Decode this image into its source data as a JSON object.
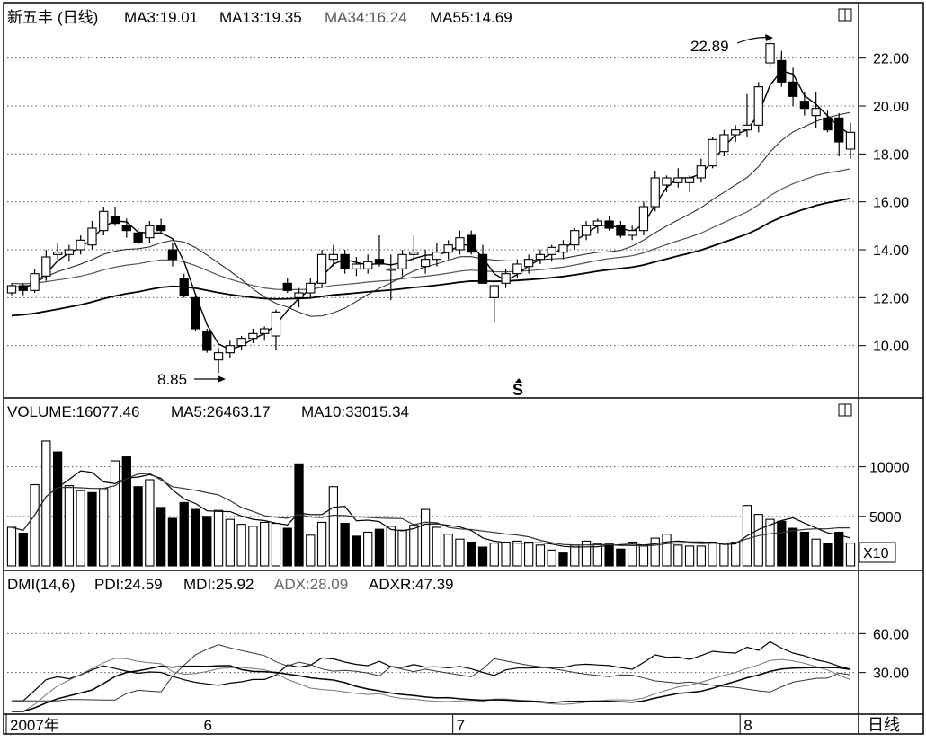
{
  "header": {
    "stock_name": "新五丰",
    "period": "(日线)",
    "ma3": "MA3:19.01",
    "ma13": "MA13:19.35",
    "ma34": "MA34:16.24",
    "ma55": "MA55:14.69"
  },
  "volume_header": {
    "volume": "VOLUME:16077.46",
    "ma5": "MA5:26463.17",
    "ma10": "MA10:33015.34"
  },
  "volume_unit": "X10",
  "dmi_header": {
    "dmi": "DMI(14,6)",
    "pdi": "PDI:24.59",
    "mdi": "MDI:25.92",
    "adx": "ADX:28.09",
    "adxr": "ADXR:47.39"
  },
  "annotations": {
    "high": "22.89",
    "low": "8.85",
    "marker": "S"
  },
  "footer": {
    "period_button": "日线"
  },
  "colors": {
    "ink": "#000000",
    "grid": "#555555",
    "ma34": "#555555",
    "adx": "#666666"
  },
  "chart_data": [
    {
      "type": "candlestick",
      "ylim": [
        8,
        23
      ],
      "yticks": [
        "22.00",
        "20.00",
        "18.00",
        "16.00",
        "14.00",
        "12.00",
        "10.00"
      ],
      "x_labels": [
        "2007年",
        "6",
        "7",
        "8"
      ],
      "candles": [
        [
          12.2,
          12.6,
          12.1,
          12.5
        ],
        [
          12.5,
          12.6,
          12.1,
          12.3
        ],
        [
          12.3,
          13.2,
          12.2,
          13.0
        ],
        [
          12.9,
          14.0,
          12.7,
          13.7
        ],
        [
          13.8,
          14.3,
          13.6,
          13.9
        ],
        [
          13.8,
          14.2,
          13.5,
          14.0
        ],
        [
          14.0,
          14.6,
          13.8,
          14.4
        ],
        [
          14.2,
          15.2,
          14.0,
          14.9
        ],
        [
          14.8,
          15.8,
          14.6,
          15.6
        ],
        [
          15.4,
          15.8,
          15.0,
          15.1
        ],
        [
          15.0,
          15.3,
          14.5,
          14.8
        ],
        [
          14.7,
          14.9,
          14.2,
          14.3
        ],
        [
          14.5,
          15.2,
          14.3,
          15.0
        ],
        [
          15.0,
          15.3,
          14.7,
          14.8
        ],
        [
          14.0,
          14.3,
          13.3,
          13.6
        ],
        [
          12.8,
          13.0,
          12.0,
          12.1
        ],
        [
          12.0,
          12.1,
          10.6,
          10.7
        ],
        [
          10.6,
          10.7,
          9.7,
          9.8
        ],
        [
          9.4,
          9.9,
          8.85,
          9.7
        ],
        [
          9.7,
          10.2,
          9.5,
          10.0
        ],
        [
          10.0,
          10.4,
          9.8,
          10.3
        ],
        [
          10.3,
          10.7,
          10.1,
          10.5
        ],
        [
          10.5,
          10.8,
          10.2,
          10.7
        ],
        [
          10.4,
          11.5,
          9.8,
          11.4
        ],
        [
          12.6,
          12.8,
          12.2,
          12.3
        ],
        [
          12.0,
          12.4,
          11.6,
          12.2
        ],
        [
          12.2,
          12.8,
          12.0,
          12.6
        ],
        [
          12.6,
          14.0,
          12.4,
          13.8
        ],
        [
          13.6,
          14.2,
          13.3,
          13.8
        ],
        [
          13.8,
          14.0,
          13.0,
          13.2
        ],
        [
          13.2,
          13.7,
          12.9,
          13.4
        ],
        [
          13.2,
          13.8,
          13.0,
          13.5
        ],
        [
          13.6,
          14.6,
          13.3,
          13.4
        ],
        [
          13.2,
          13.8,
          11.9,
          13.2
        ],
        [
          13.2,
          14.0,
          12.9,
          13.8
        ],
        [
          13.8,
          14.6,
          13.5,
          13.9
        ],
        [
          13.3,
          14.0,
          13.0,
          13.6
        ],
        [
          13.6,
          14.3,
          13.3,
          13.9
        ],
        [
          13.9,
          14.4,
          13.6,
          14.2
        ],
        [
          14.0,
          14.8,
          13.8,
          14.5
        ],
        [
          14.6,
          14.8,
          13.8,
          13.9
        ],
        [
          13.8,
          14.2,
          12.6,
          12.6
        ],
        [
          12.0,
          12.4,
          11.0,
          12.5
        ],
        [
          12.6,
          13.2,
          12.4,
          13.0
        ],
        [
          13.0,
          13.6,
          12.8,
          13.4
        ],
        [
          13.3,
          13.8,
          13.0,
          13.6
        ],
        [
          13.6,
          14.0,
          13.4,
          13.8
        ],
        [
          13.8,
          14.2,
          13.5,
          14.1
        ],
        [
          13.9,
          14.4,
          13.6,
          14.2
        ],
        [
          14.2,
          14.9,
          14.0,
          14.8
        ],
        [
          14.6,
          15.2,
          14.4,
          15.0
        ],
        [
          15.0,
          15.3,
          14.7,
          15.2
        ],
        [
          15.2,
          15.4,
          14.8,
          14.9
        ],
        [
          15.0,
          15.2,
          14.5,
          14.6
        ],
        [
          14.6,
          15.0,
          14.4,
          14.8
        ],
        [
          14.8,
          16.0,
          14.6,
          15.8
        ],
        [
          15.8,
          17.3,
          15.6,
          17.0
        ],
        [
          16.7,
          17.1,
          16.4,
          17.0
        ],
        [
          16.8,
          17.4,
          16.6,
          17.0
        ],
        [
          16.8,
          17.1,
          16.4,
          17.0
        ],
        [
          17.0,
          17.8,
          16.8,
          17.5
        ],
        [
          17.5,
          18.7,
          17.4,
          18.6
        ],
        [
          18.1,
          19.0,
          17.9,
          18.8
        ],
        [
          18.8,
          19.2,
          18.5,
          19.0
        ],
        [
          19.0,
          20.5,
          18.7,
          19.2
        ],
        [
          19.2,
          21.0,
          18.9,
          20.8
        ],
        [
          21.8,
          22.89,
          21.6,
          22.6
        ],
        [
          21.9,
          22.3,
          20.8,
          21.0
        ],
        [
          21.0,
          21.6,
          20.0,
          20.4
        ],
        [
          20.2,
          20.6,
          19.6,
          19.9
        ],
        [
          19.6,
          20.6,
          19.1,
          19.9
        ],
        [
          19.5,
          19.8,
          18.9,
          19.0
        ],
        [
          19.5,
          19.7,
          17.9,
          18.5
        ],
        [
          18.2,
          19.3,
          17.8,
          18.9
        ]
      ]
    },
    {
      "type": "bar",
      "ylim": [
        0,
        14500
      ],
      "yticks": [
        "10000",
        "5000"
      ],
      "unit": "X10",
      "values": [
        3900,
        3300,
        8200,
        12600,
        11500,
        8100,
        7600,
        7400,
        7800,
        10600,
        11000,
        8000,
        8700,
        5900,
        4800,
        6400,
        5700,
        5000,
        5600,
        4700,
        4200,
        4000,
        4400,
        4300,
        3800,
        10300,
        3100,
        4400,
        8000,
        4300,
        3000,
        3400,
        3700,
        4000,
        3600,
        4100,
        5700,
        3900,
        3200,
        2700,
        2400,
        1900,
        2300,
        2400,
        2500,
        2400,
        2100,
        1600,
        1300,
        2100,
        2500,
        2200,
        2200,
        1700,
        2400,
        2000,
        2800,
        3200,
        2100,
        2000,
        2000,
        2400,
        2300,
        2400,
        6100,
        5200,
        4700,
        4500,
        3800,
        3400,
        2700,
        2300,
        3400,
        2300
      ],
      "down_days": [
        false,
        true,
        false,
        false,
        true,
        false,
        false,
        true,
        false,
        false,
        true,
        true,
        false,
        true,
        true,
        true,
        true,
        true,
        false,
        false,
        false,
        false,
        false,
        false,
        true,
        true,
        false,
        false,
        false,
        true,
        true,
        false,
        true,
        false,
        false,
        false,
        false,
        false,
        false,
        false,
        true,
        true,
        false,
        false,
        false,
        false,
        false,
        false,
        true,
        false,
        false,
        false,
        true,
        true,
        false,
        false,
        false,
        false,
        false,
        false,
        false,
        false,
        false,
        false,
        false,
        false,
        false,
        true,
        true,
        true,
        false,
        true,
        true,
        false
      ]
    },
    {
      "type": "line",
      "ylim": [
        0,
        90
      ],
      "yticks": [
        "60.00",
        "30.00"
      ],
      "series_count": 4
    }
  ]
}
